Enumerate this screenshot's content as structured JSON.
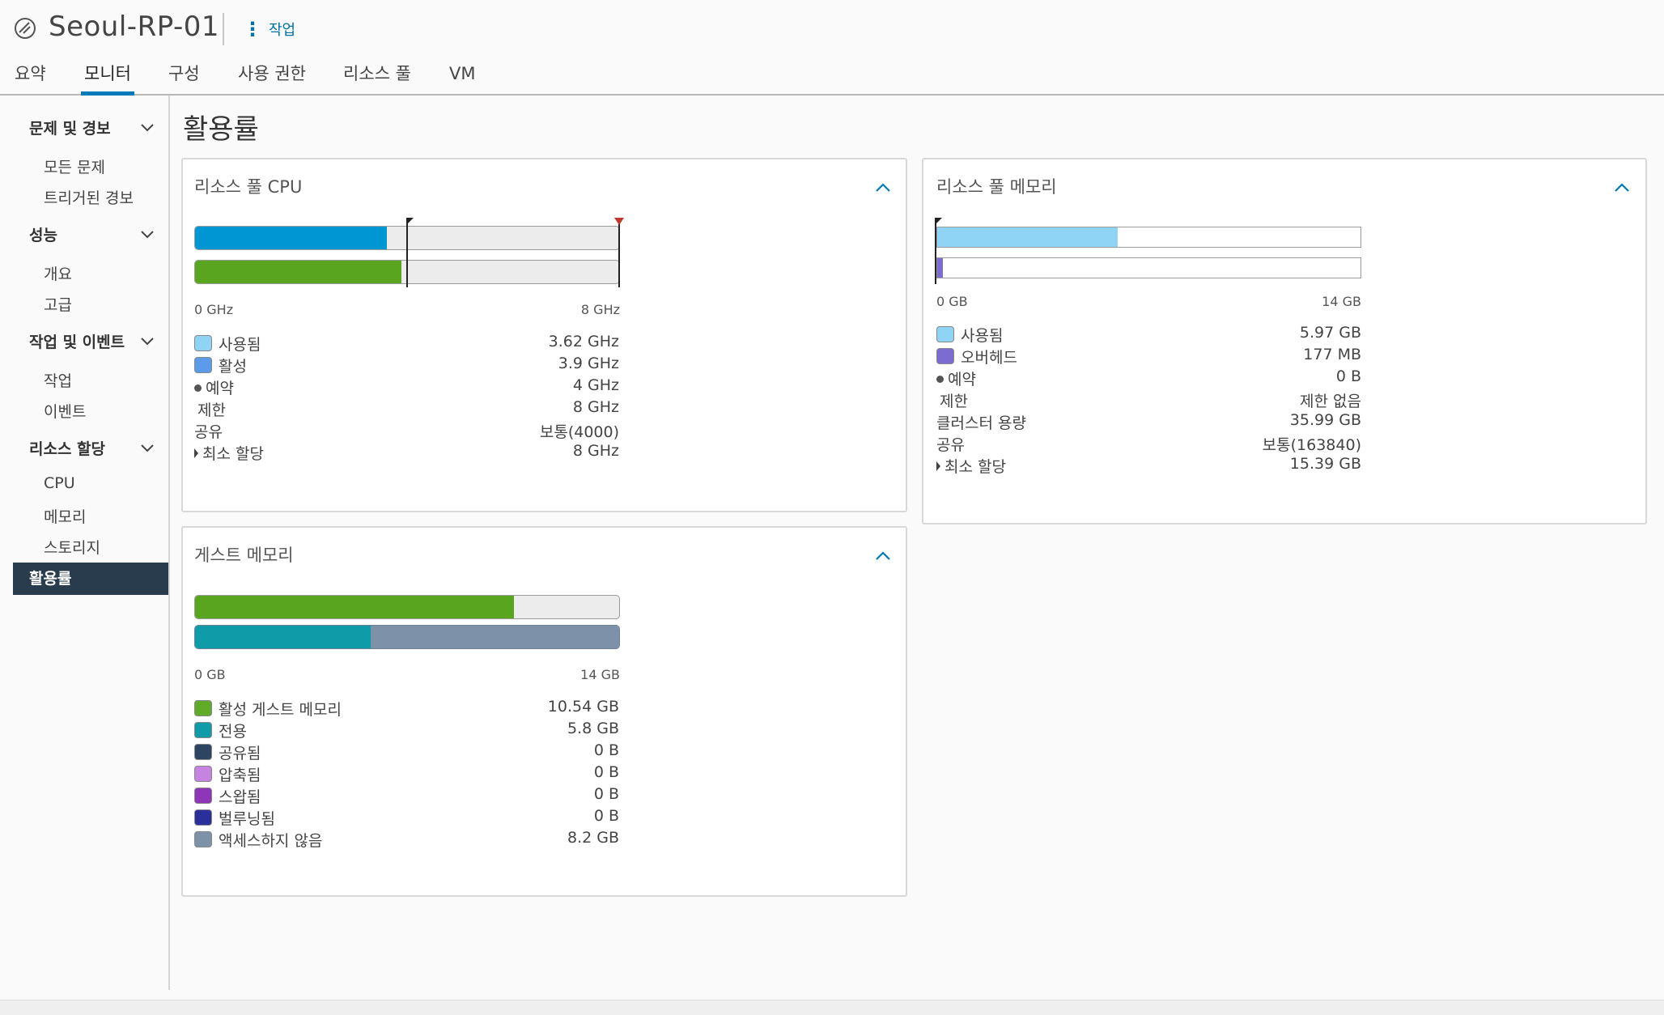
{
  "header": {
    "title": "Seoul-RP-01",
    "actions_label": "작업",
    "icon": "resource-pool-icon"
  },
  "tabs": [
    {
      "label": "요약"
    },
    {
      "label": "모니터",
      "active": true
    },
    {
      "label": "구성"
    },
    {
      "label": "사용 권한"
    },
    {
      "label": "리소스 풀"
    },
    {
      "label": "VM"
    }
  ],
  "sidebar": {
    "groups": [
      {
        "label": "문제 및 경보",
        "items": [
          "모든 문제",
          "트리거된 경보"
        ]
      },
      {
        "label": "성능",
        "items": [
          "개요",
          "고급"
        ]
      },
      {
        "label": "작업 및 이벤트",
        "items": [
          "작업",
          "이벤트"
        ]
      },
      {
        "label": "리소스 할당",
        "items": [
          "CPU",
          "메모리",
          "스토리지"
        ]
      }
    ],
    "active_item": "활용률"
  },
  "main": {
    "title": "활용률"
  },
  "cpu_card": {
    "title": "리소스 풀 CPU",
    "scale_min": "0 GHz",
    "scale_max": "8 GHz",
    "max_ghz": 8,
    "bars": {
      "used_ghz": 3.62,
      "active_ghz": 3.9,
      "reservation_ghz": 4,
      "limit_ghz": 8
    },
    "legend": [
      {
        "label": "사용됨",
        "value": "3.62 GHz",
        "swatch": "#8fd3f5"
      },
      {
        "label": "활성",
        "value": "3.9 GHz",
        "swatch": "#5b9bea"
      },
      {
        "label": "예약",
        "value": "4 GHz",
        "marker": "dot"
      },
      {
        "label": "제한",
        "value": "8 GHz"
      },
      {
        "label": "공유",
        "value": "보통(4000)"
      },
      {
        "label": "최소 할당",
        "value": "8 GHz",
        "marker": "triangle"
      }
    ]
  },
  "memory_card": {
    "title": "리소스 풀 메모리",
    "scale_min": "0 GB",
    "scale_max": "14 GB",
    "max_gb": 14,
    "bars": {
      "used_gb": 5.97,
      "overhead_gb": 0.177
    },
    "legend": [
      {
        "label": "사용됨",
        "value": "5.97 GB",
        "swatch": "#8fd3f5"
      },
      {
        "label": "오버헤드",
        "value": "177 MB",
        "swatch": "#7b6ccf"
      },
      {
        "label": "예약",
        "value": "0 B",
        "marker": "dot"
      },
      {
        "label": "제한",
        "value": "제한 없음"
      },
      {
        "label": "클러스터 용량",
        "value": "35.99 GB"
      },
      {
        "label": "공유",
        "value": "보통(163840)"
      },
      {
        "label": "최소 할당",
        "value": "15.39 GB",
        "marker": "triangle"
      }
    ]
  },
  "guest_card": {
    "title": "게스트 메모리",
    "scale_min": "0 GB",
    "scale_max": "14 GB",
    "max_gb": 14,
    "bars": {
      "active_gb": 10.54,
      "private_gb": 5.8,
      "not_accessed_gb": 8.2
    },
    "legend": [
      {
        "label": "활성 게스트 메모리",
        "value": "10.54 GB",
        "swatch": "#60ab28"
      },
      {
        "label": "전용",
        "value": "5.8 GB",
        "swatch": "#0f9ba8"
      },
      {
        "label": "공유됨",
        "value": "0 B",
        "swatch": "#2d4560"
      },
      {
        "label": "압축됨",
        "value": "0 B",
        "swatch": "#c584e0"
      },
      {
        "label": "스왑됨",
        "value": "0 B",
        "swatch": "#8e35b8"
      },
      {
        "label": "벌루닝됨",
        "value": "0 B",
        "swatch": "#2b2f9a"
      },
      {
        "label": "액세스하지 않음",
        "value": "8.2 GB",
        "swatch": "#7d92a8"
      }
    ]
  },
  "colors": {
    "accent": "#0079b8",
    "cpu_used": "#0095d3",
    "cpu_active": "#5aa520",
    "mem_used": "#8fd3f5",
    "mem_overhead": "#7b6ccf",
    "guest_active": "#5aa520",
    "guest_private": "#0f9ba8",
    "guest_not_accessed": "#7d92a8",
    "sidebar_active_bg": "#283c4e"
  }
}
